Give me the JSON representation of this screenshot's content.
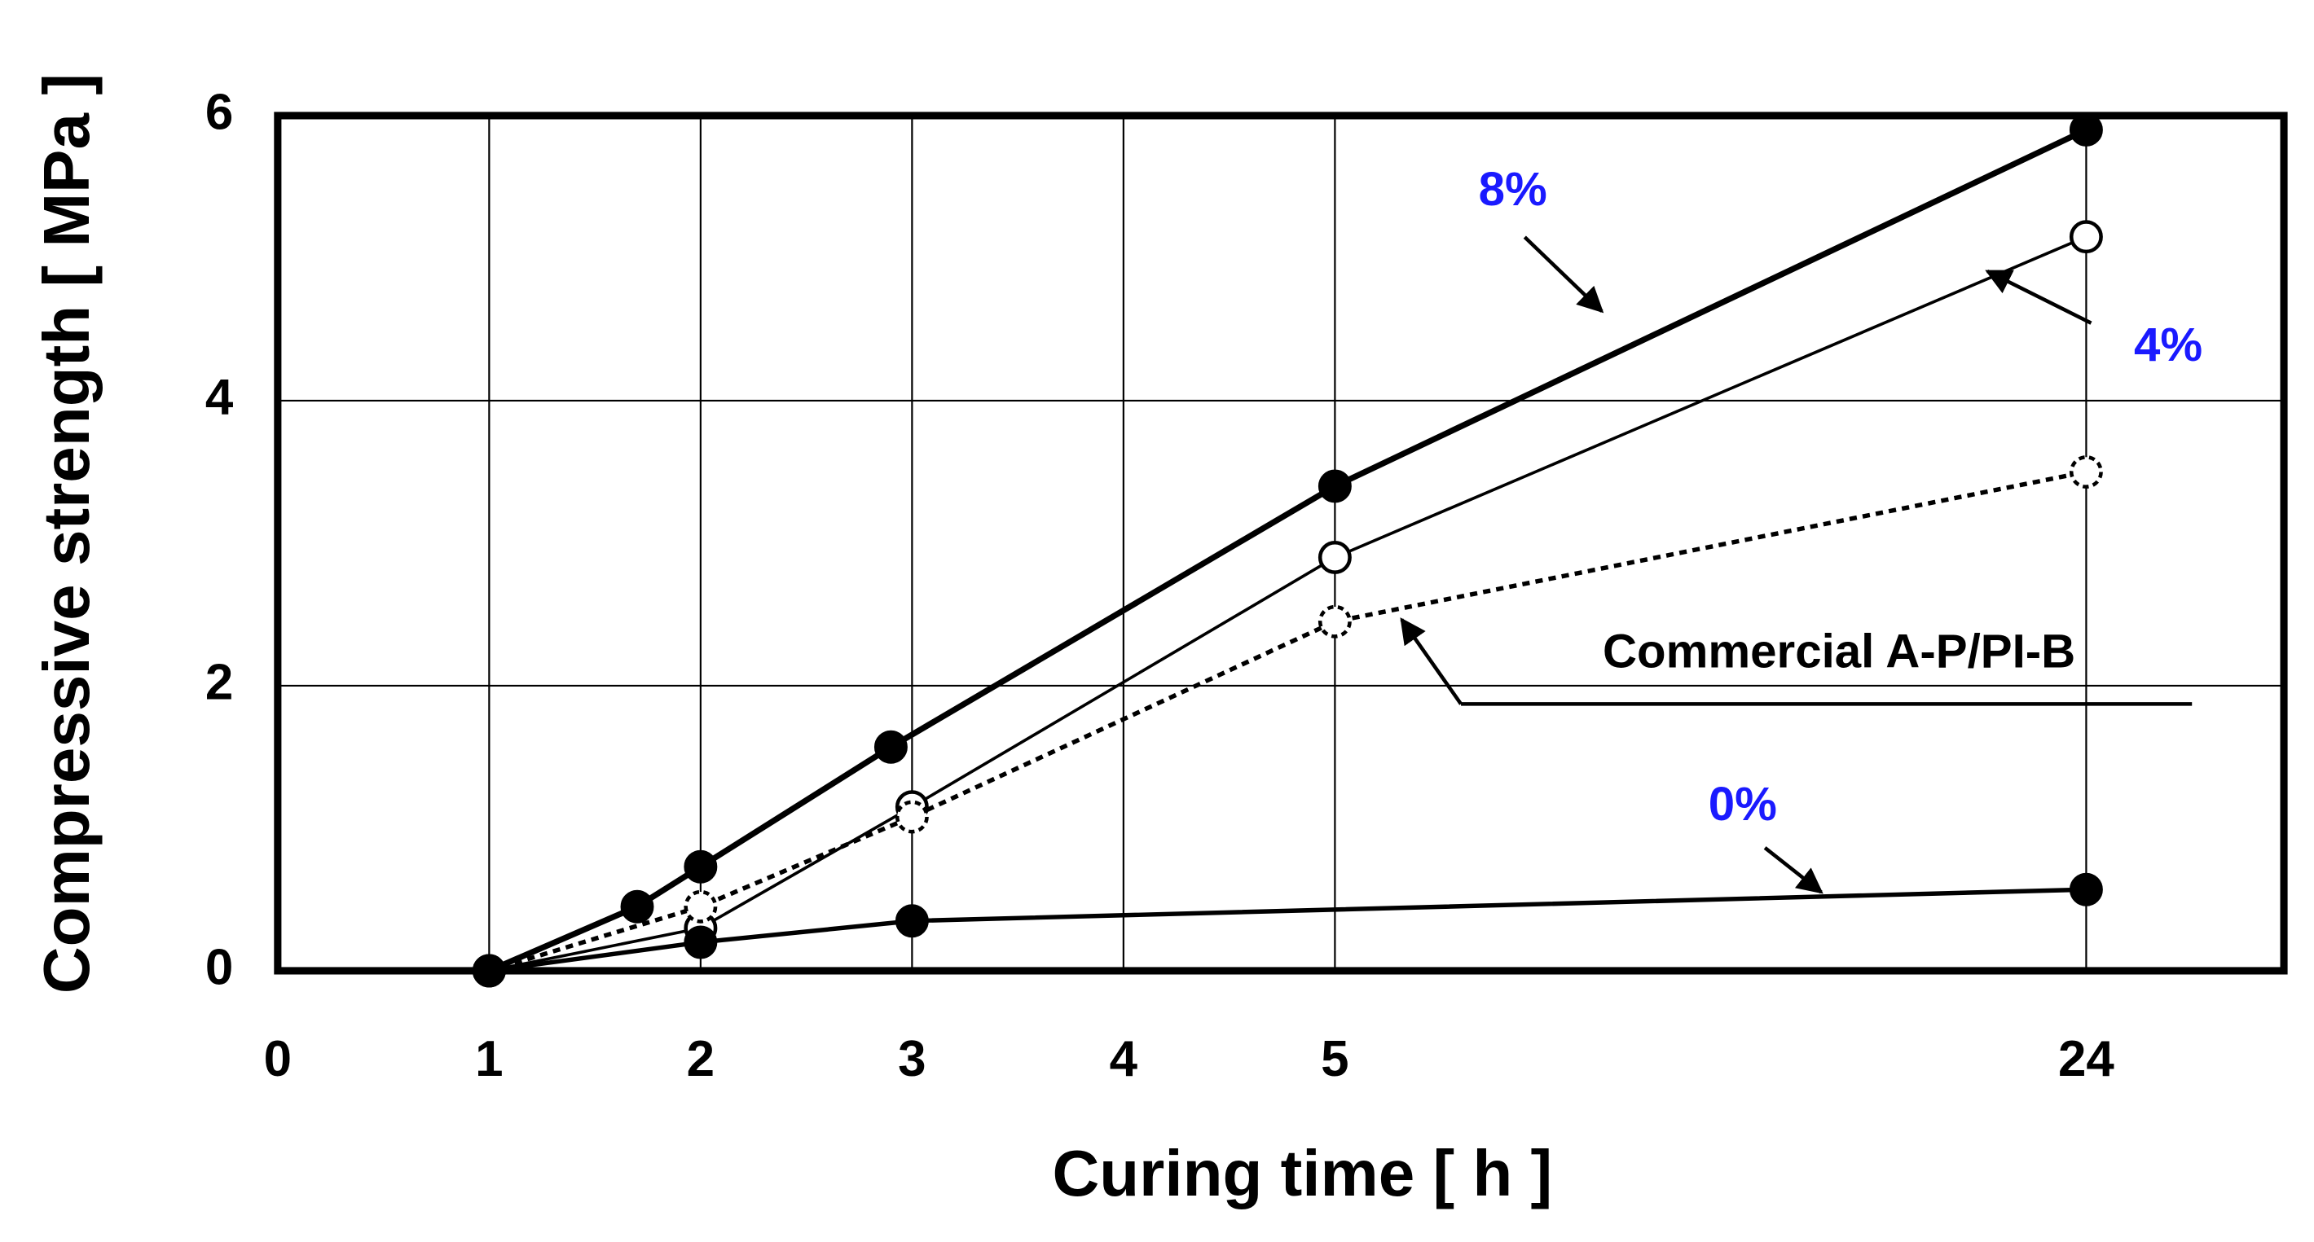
{
  "chart_data": {
    "type": "line",
    "xlabel": "Curing time [ h ]",
    "ylabel": "Compressive strength [ MPa ]",
    "xlim": [
      0,
      29
    ],
    "xticks": [
      0,
      1,
      2,
      3,
      4,
      5,
      24
    ],
    "ylim": [
      0,
      6
    ],
    "yticks": [
      0,
      2,
      4,
      6
    ],
    "grid": true,
    "series": [
      {
        "name": "8%",
        "color": "#000000",
        "line_style": "solid",
        "line_width": 4,
        "marker_fill": "#000000",
        "x": [
          1,
          1.7,
          2,
          2.9,
          5,
          24
        ],
        "values": [
          0,
          0.45,
          0.73,
          1.57,
          3.4,
          5.9
        ]
      },
      {
        "name": "4%",
        "color": "#000000",
        "line_style": "solid",
        "line_width": 2,
        "marker_fill": "#ffffff",
        "x": [
          1,
          2,
          3,
          5,
          24
        ],
        "values": [
          0,
          0.3,
          1.15,
          2.9,
          5.15
        ]
      },
      {
        "name": "Commercial A-P/PI-B",
        "color": "#000000",
        "line_style": "dotted",
        "line_width": 3,
        "marker_fill": "#ffffff",
        "x": [
          1,
          2,
          3,
          5,
          24
        ],
        "values": [
          0,
          0.45,
          1.08,
          2.45,
          3.5
        ]
      },
      {
        "name": "0%",
        "color": "#000000",
        "line_style": "solid",
        "line_width": 3,
        "marker_fill": "#000000",
        "x": [
          1,
          2,
          3,
          24
        ],
        "values": [
          0,
          0.2,
          0.35,
          0.57
        ]
      }
    ]
  }
}
